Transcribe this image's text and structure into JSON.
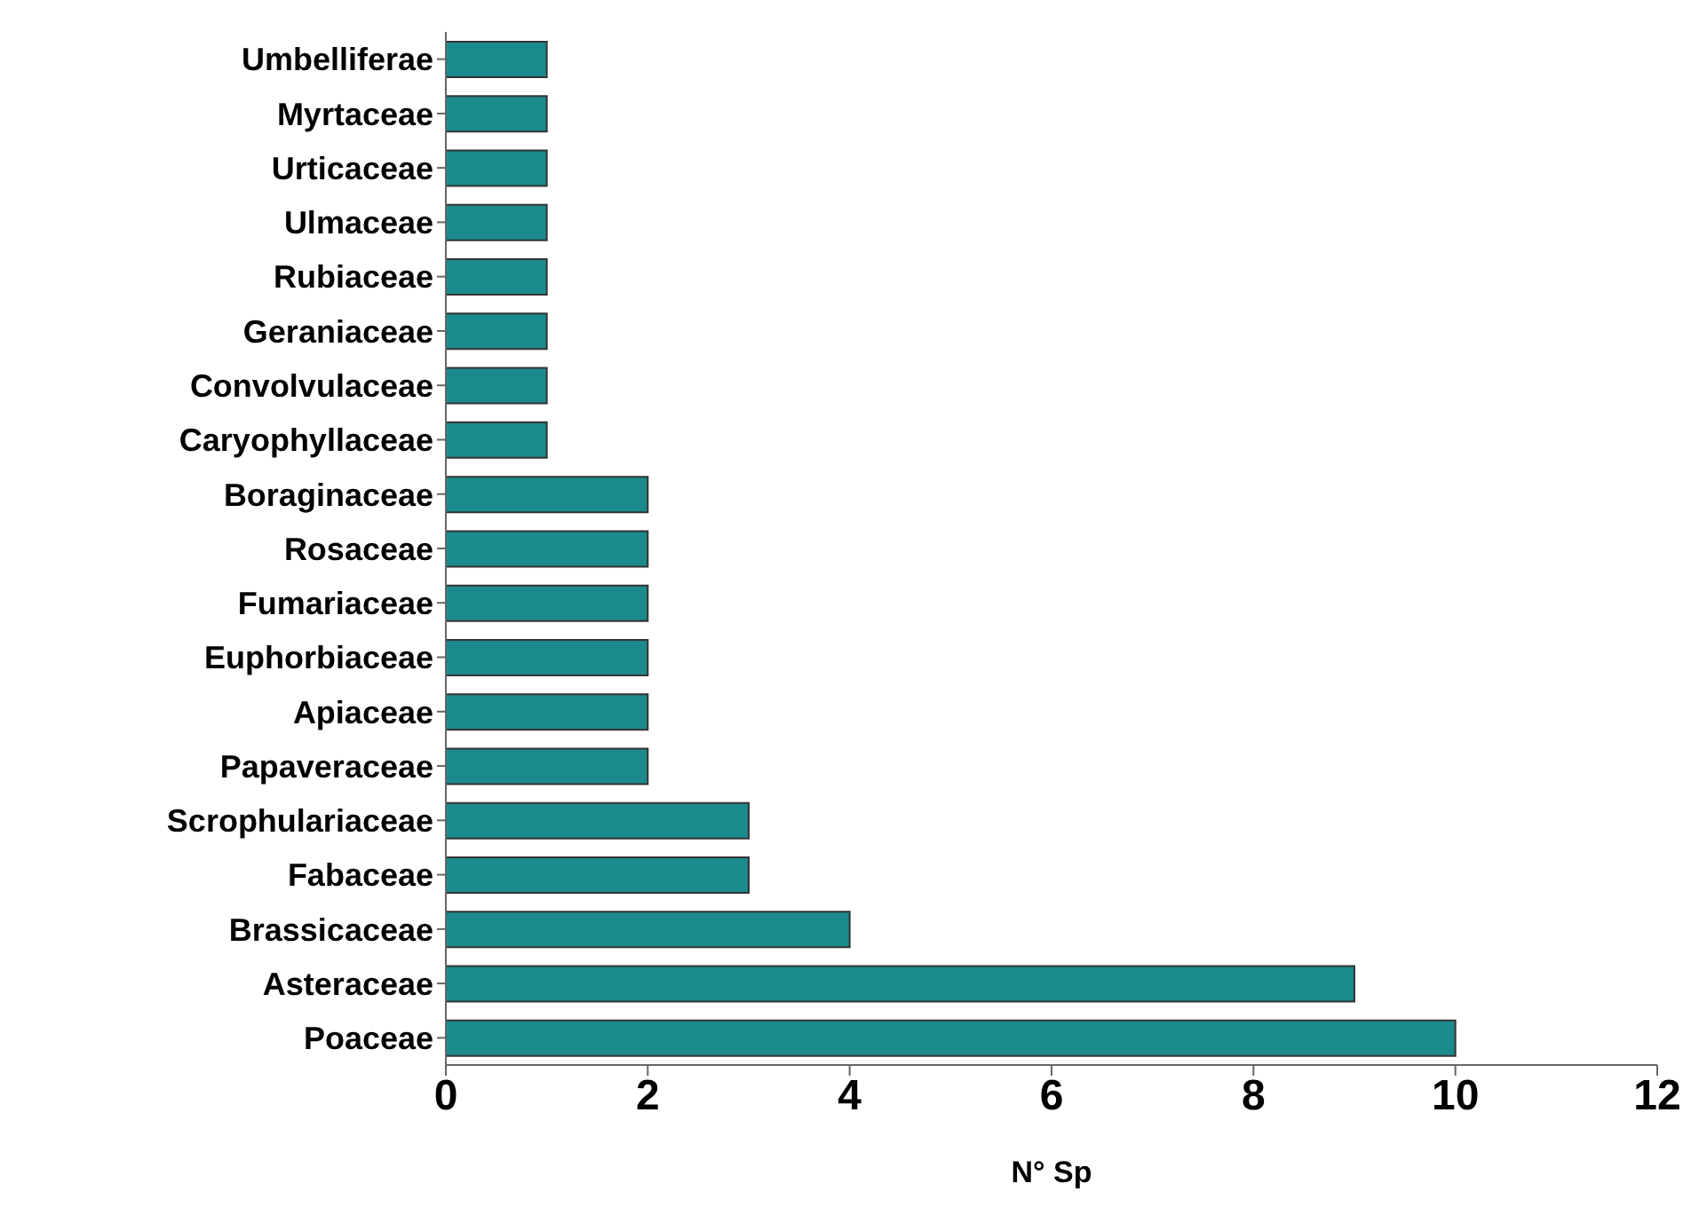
{
  "chart_data": {
    "type": "bar",
    "orientation": "horizontal",
    "xlabel": "N° Sp",
    "categories": [
      "Umbelliferae",
      "Myrtaceae",
      "Urticaceae",
      "Ulmaceae",
      "Rubiaceae",
      "Geraniaceae",
      "Convolvulaceae",
      "Caryophyllaceae",
      "Boraginaceae",
      "Rosaceae",
      "Fumariaceae",
      "Euphorbiaceae",
      "Apiaceae",
      "Papaveraceae",
      "Scrophulariaceae",
      "Fabaceae",
      "Brassicaceae",
      "Asteraceae",
      "Poaceae"
    ],
    "values": [
      1,
      1,
      1,
      1,
      1,
      1,
      1,
      1,
      2,
      2,
      2,
      2,
      2,
      2,
      3,
      3,
      4,
      9,
      10
    ],
    "color": "#1b8a8c",
    "xlim": [
      0,
      12
    ],
    "xticks": [
      0,
      2,
      4,
      6,
      8,
      10,
      12
    ],
    "grid": false,
    "legend": false
  }
}
